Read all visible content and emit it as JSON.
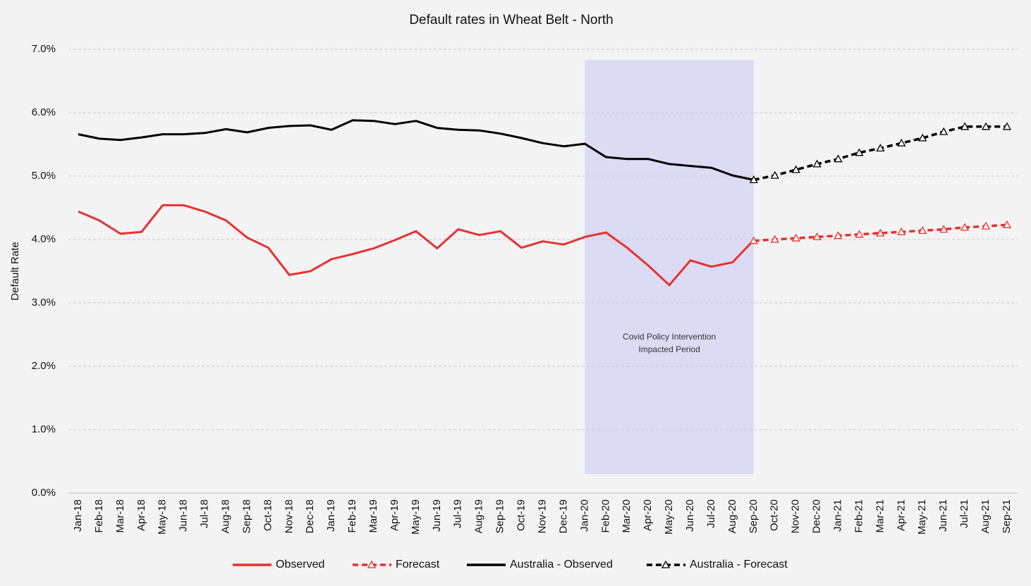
{
  "chart_data": {
    "type": "line",
    "title": "Default rates in Wheat Belt - North",
    "y_label": "Default Rate",
    "categories": [
      "Jan-18",
      "Feb-18",
      "Mar-18",
      "Apr-18",
      "May-18",
      "Jun-18",
      "Jul-18",
      "Aug-18",
      "Sep-18",
      "Oct-18",
      "Nov-18",
      "Dec-18",
      "Jan-19",
      "Feb-19",
      "Mar-19",
      "Apr-19",
      "May-19",
      "Jun-19",
      "Jul-19",
      "Aug-19",
      "Sep-19",
      "Oct-19",
      "Nov-19",
      "Dec-19",
      "Jan-20",
      "Feb-20",
      "Mar-20",
      "Apr-20",
      "May-20",
      "Jun-20",
      "Jul-20",
      "Aug-20",
      "Sep-20",
      "Oct-20",
      "Nov-20",
      "Dec-20",
      "Jan-21",
      "Feb-21",
      "Mar-21",
      "Apr-21",
      "May-21",
      "Jun-21",
      "Jul-21",
      "Aug-21",
      "Sep-21"
    ],
    "ylim": [
      0,
      7
    ],
    "yticks": [
      {
        "value": 0,
        "label": "0.0%"
      },
      {
        "value": 1,
        "label": "1.0%"
      },
      {
        "value": 2,
        "label": "2.0%"
      },
      {
        "value": 3,
        "label": "3.0%"
      },
      {
        "value": 4,
        "label": "4.0%"
      },
      {
        "value": 5,
        "label": "5.0%"
      },
      {
        "value": 6,
        "label": "6.0%"
      },
      {
        "value": 7,
        "label": "7.0%"
      }
    ],
    "grid": true,
    "legend": "bottom",
    "series": [
      {
        "name": "Observed",
        "color": "#e8302f",
        "dashed": false,
        "marker": "none",
        "values": [
          4.44,
          4.3,
          4.09,
          4.12,
          4.54,
          4.54,
          4.44,
          4.3,
          4.03,
          3.87,
          3.44,
          3.5,
          3.69,
          3.77,
          3.86,
          3.99,
          4.13,
          3.86,
          4.16,
          4.07,
          4.13,
          3.87,
          3.97,
          3.92,
          4.04,
          4.11,
          3.87,
          3.59,
          3.28,
          3.67,
          3.57,
          3.64,
          3.99,
          null,
          null,
          null,
          null,
          null,
          null,
          null,
          null,
          null,
          null,
          null,
          null
        ]
      },
      {
        "name": "Forecast",
        "color": "#e8302f",
        "dashed": true,
        "marker": "triangle",
        "values": [
          null,
          null,
          null,
          null,
          null,
          null,
          null,
          null,
          null,
          null,
          null,
          null,
          null,
          null,
          null,
          null,
          null,
          null,
          null,
          null,
          null,
          null,
          null,
          null,
          null,
          null,
          null,
          null,
          null,
          null,
          null,
          null,
          3.98,
          4.0,
          4.02,
          4.04,
          4.06,
          4.08,
          4.1,
          4.12,
          4.14,
          4.16,
          4.19,
          4.21,
          4.23
        ]
      },
      {
        "name": "Australia - Observed",
        "color": "#000000",
        "dashed": false,
        "marker": "none",
        "values": [
          5.66,
          5.59,
          5.57,
          5.61,
          5.66,
          5.66,
          5.68,
          5.74,
          5.69,
          5.76,
          5.79,
          5.8,
          5.73,
          5.88,
          5.87,
          5.82,
          5.87,
          5.76,
          5.73,
          5.72,
          5.67,
          5.6,
          5.52,
          5.47,
          5.51,
          5.3,
          5.27,
          5.27,
          5.19,
          5.16,
          5.13,
          5.01,
          4.94,
          null,
          null,
          null,
          null,
          null,
          null,
          null,
          null,
          null,
          null,
          null,
          null
        ]
      },
      {
        "name": "Australia - Forecast",
        "color": "#000000",
        "dashed": true,
        "marker": "triangle",
        "values": [
          null,
          null,
          null,
          null,
          null,
          null,
          null,
          null,
          null,
          null,
          null,
          null,
          null,
          null,
          null,
          null,
          null,
          null,
          null,
          null,
          null,
          null,
          null,
          null,
          null,
          null,
          null,
          null,
          null,
          null,
          null,
          null,
          4.94,
          5.01,
          5.1,
          5.19,
          5.27,
          5.37,
          5.44,
          5.52,
          5.6,
          5.7,
          5.78,
          5.78,
          5.78
        ]
      }
    ],
    "shaded_region": {
      "start": "Jan-20",
      "end": "Sep-20",
      "ylim": [
        0.3,
        6.83
      ],
      "color": "#d8d8f4",
      "text": [
        "Covid Policy Intervention",
        "Impacted Period"
      ]
    }
  }
}
